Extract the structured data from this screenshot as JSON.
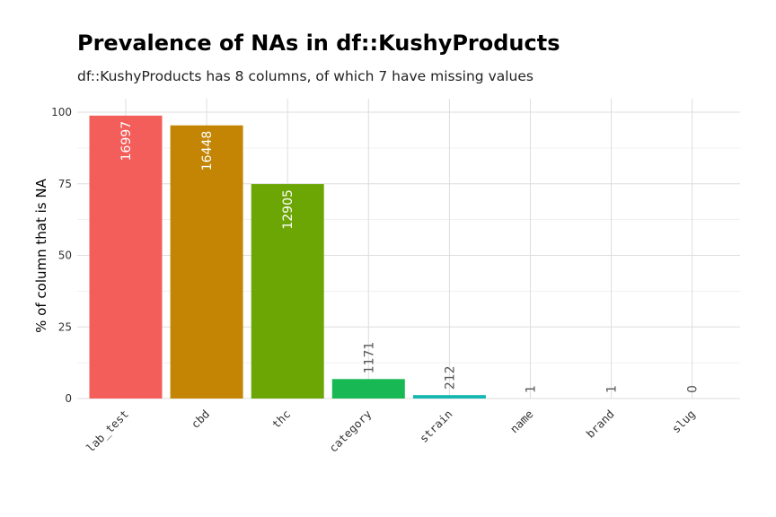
{
  "chart_data": {
    "type": "bar",
    "title": "Prevalence of NAs in df::KushyProducts",
    "subtitle": "df::KushyProducts has 8 columns, of which 7 have missing values",
    "ylabel": "% of column that is NA",
    "xlabel": "",
    "ylim": [
      0,
      100
    ],
    "yticks": [
      0,
      25,
      50,
      75,
      100
    ],
    "ytick_labels": [
      "0",
      "25",
      "50",
      "75",
      "100"
    ],
    "categories": [
      "lab_test",
      "cbd",
      "thc",
      "category",
      "strain",
      "name",
      "brand",
      "slug"
    ],
    "values": [
      98.8,
      95.4,
      74.9,
      6.8,
      1.2,
      0.006,
      0.006,
      0
    ],
    "labels": [
      "16997",
      "16448",
      "12905",
      "1171",
      "212",
      "1",
      "1",
      "0"
    ],
    "colors": [
      "#F8766D",
      "#C49A00",
      "#53B400",
      "#00C094",
      "#00B6EB",
      "#A58AFF",
      "#FB61D7",
      "#FF6C91"
    ],
    "bar_colors_rendered": [
      "#F35E5A",
      "#C38503",
      "#6BA605",
      "#18B955",
      "#16B7B3",
      "#9FA0F7",
      "#D66FC9",
      "#F0648A"
    ],
    "label_color_inside": "#ffffff",
    "label_color_outside": "#555555",
    "grid": true,
    "legend": "none"
  }
}
